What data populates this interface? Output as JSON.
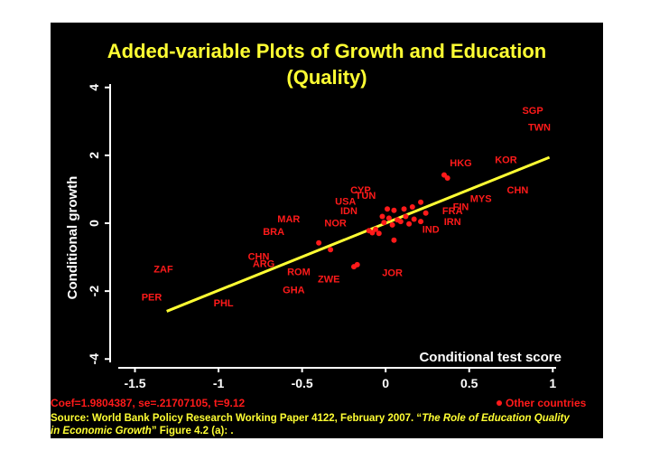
{
  "colors": {
    "background": "#000000",
    "title": "#ffff33",
    "axis": "#ffffff",
    "points": "#ff1a1a",
    "fit_line": "#ffff33",
    "stats": "#ff1a1a",
    "source": "#ffff33"
  },
  "chart_data": {
    "type": "scatter",
    "title": "Added-variable Plots of Growth and Education",
    "subtitle": "(Quality)",
    "xlabel": "Conditional test score",
    "ylabel": "Conditional growth",
    "xlim": [
      -1.6,
      1.02
    ],
    "ylim": [
      -4.1,
      4.1
    ],
    "xticks": [
      -1.5,
      -1,
      -0.5,
      0,
      0.5,
      1
    ],
    "xtick_labels": [
      "-1.5",
      "-1",
      "-0.5",
      "0",
      "0.5",
      "1"
    ],
    "yticks": [
      -4,
      -2,
      0,
      2,
      4
    ],
    "ytick_labels": [
      "-4",
      "-2",
      "0",
      "2",
      "4"
    ],
    "grid": false,
    "fit_line": {
      "intercept": 0.0,
      "slope": 1.98,
      "x_range": [
        -1.31,
        0.98
      ]
    },
    "labeled_points": [
      {
        "label": "SGP",
        "x": 0.88,
        "y": 3.3
      },
      {
        "label": "TWN",
        "x": 0.92,
        "y": 2.8
      },
      {
        "label": "HKG",
        "x": 0.45,
        "y": 1.75
      },
      {
        "label": "KOR",
        "x": 0.72,
        "y": 1.85
      },
      {
        "label": "CHN",
        "x": 0.79,
        "y": 0.95
      },
      {
        "label": "MYS",
        "x": 0.57,
        "y": 0.7
      },
      {
        "label": "FIN",
        "x": 0.45,
        "y": 0.46
      },
      {
        "label": "FRA",
        "x": 0.4,
        "y": 0.34
      },
      {
        "label": "IRN",
        "x": 0.4,
        "y": 0.03
      },
      {
        "label": "IND",
        "x": 0.27,
        "y": -0.2
      },
      {
        "label": "CYP",
        "x": -0.15,
        "y": 0.95
      },
      {
        "label": "TUN",
        "x": -0.12,
        "y": 0.8
      },
      {
        "label": "USA",
        "x": -0.24,
        "y": 0.62
      },
      {
        "label": "IDN",
        "x": -0.22,
        "y": 0.35
      },
      {
        "label": "MAR",
        "x": -0.58,
        "y": 0.1
      },
      {
        "label": "NOR",
        "x": -0.3,
        "y": -0.01
      },
      {
        "label": "BRA",
        "x": -0.67,
        "y": -0.27
      },
      {
        "label": "CHN",
        "x": -0.76,
        "y": -1.0
      },
      {
        "label": "ARG",
        "x": -0.73,
        "y": -1.22
      },
      {
        "label": "ROM",
        "x": -0.52,
        "y": -1.45
      },
      {
        "label": "GHA",
        "x": -0.55,
        "y": -1.98
      },
      {
        "label": "ZWE",
        "x": -0.34,
        "y": -1.67
      },
      {
        "label": "JOR",
        "x": 0.04,
        "y": -1.48
      },
      {
        "label": "ZAF",
        "x": -1.33,
        "y": -1.38
      },
      {
        "label": "PER",
        "x": -1.4,
        "y": -2.2
      },
      {
        "label": "PHL",
        "x": -0.97,
        "y": -2.37
      }
    ],
    "other_points": [
      {
        "x": 0.35,
        "y": 1.42
      },
      {
        "x": 0.37,
        "y": 1.33
      },
      {
        "x": 0.21,
        "y": 0.62
      },
      {
        "x": 0.16,
        "y": 0.48
      },
      {
        "x": 0.11,
        "y": 0.42
      },
      {
        "x": 0.05,
        "y": 0.38
      },
      {
        "x": 0.01,
        "y": 0.42
      },
      {
        "x": -0.02,
        "y": 0.2
      },
      {
        "x": 0.02,
        "y": 0.15
      },
      {
        "x": 0.07,
        "y": 0.1
      },
      {
        "x": 0.12,
        "y": 0.2
      },
      {
        "x": 0.17,
        "y": 0.12
      },
      {
        "x": 0.21,
        "y": 0.05
      },
      {
        "x": 0.24,
        "y": 0.3
      },
      {
        "x": 0.14,
        "y": -0.02
      },
      {
        "x": 0.09,
        "y": 0.05
      },
      {
        "x": 0.04,
        "y": -0.05
      },
      {
        "x": -0.01,
        "y": 0.02
      },
      {
        "x": -0.06,
        "y": -0.18
      },
      {
        "x": -0.08,
        "y": -0.28
      },
      {
        "x": -0.04,
        "y": -0.3
      },
      {
        "x": -0.1,
        "y": -0.22
      },
      {
        "x": 0.05,
        "y": -0.5
      },
      {
        "x": -0.4,
        "y": -0.58
      },
      {
        "x": -0.33,
        "y": -0.78
      },
      {
        "x": -0.17,
        "y": -1.22
      },
      {
        "x": -0.19,
        "y": -1.28
      }
    ],
    "legend": {
      "label": "Other countries",
      "position": "bottom-right"
    },
    "stats_text": "Coef=1.9804387, se=.21707105, t=9.12"
  },
  "source": {
    "prefix": "Source: World Bank Policy Research Working Paper 4122, February 2007. “",
    "title_italic": "The Role of Education Quality",
    "line2_italic": "in Economic Growth",
    "suffix": "” Figure 4.2 (a): ."
  }
}
